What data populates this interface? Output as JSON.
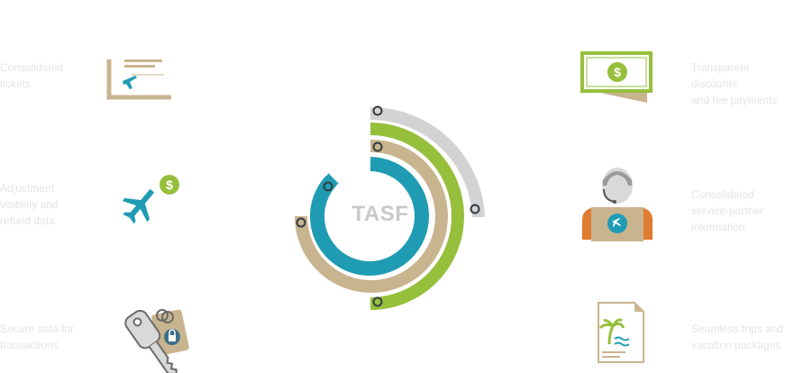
{
  "center_label": "TASF",
  "colors": {
    "teal": "#1f9cb3",
    "tan": "#c8b48e",
    "green": "#96bf3c",
    "gray": "#d3d3d3",
    "orange": "#e07b32",
    "label_text": "#e4e4e4"
  },
  "labels": {
    "left_top": "Consolidated\ntickets",
    "left_middle": "Adjustment\nvisibility and\nrefund data",
    "left_bottom": "Secure data for\ntransactions",
    "right_top": "Transparent discounts\nand fee payments",
    "right_middle": "Consolidated\nservice-partner\ninformation",
    "right_bottom": "Seamless trips and\nvacation packages"
  },
  "icons": {
    "left_top": "ticket-icon",
    "left_middle": "airplane-dollar-icon",
    "left_bottom": "key-lock-icon",
    "right_top": "dollar-bill-icon",
    "right_middle": "travel-agent-icon",
    "right_bottom": "vacation-document-icon"
  }
}
